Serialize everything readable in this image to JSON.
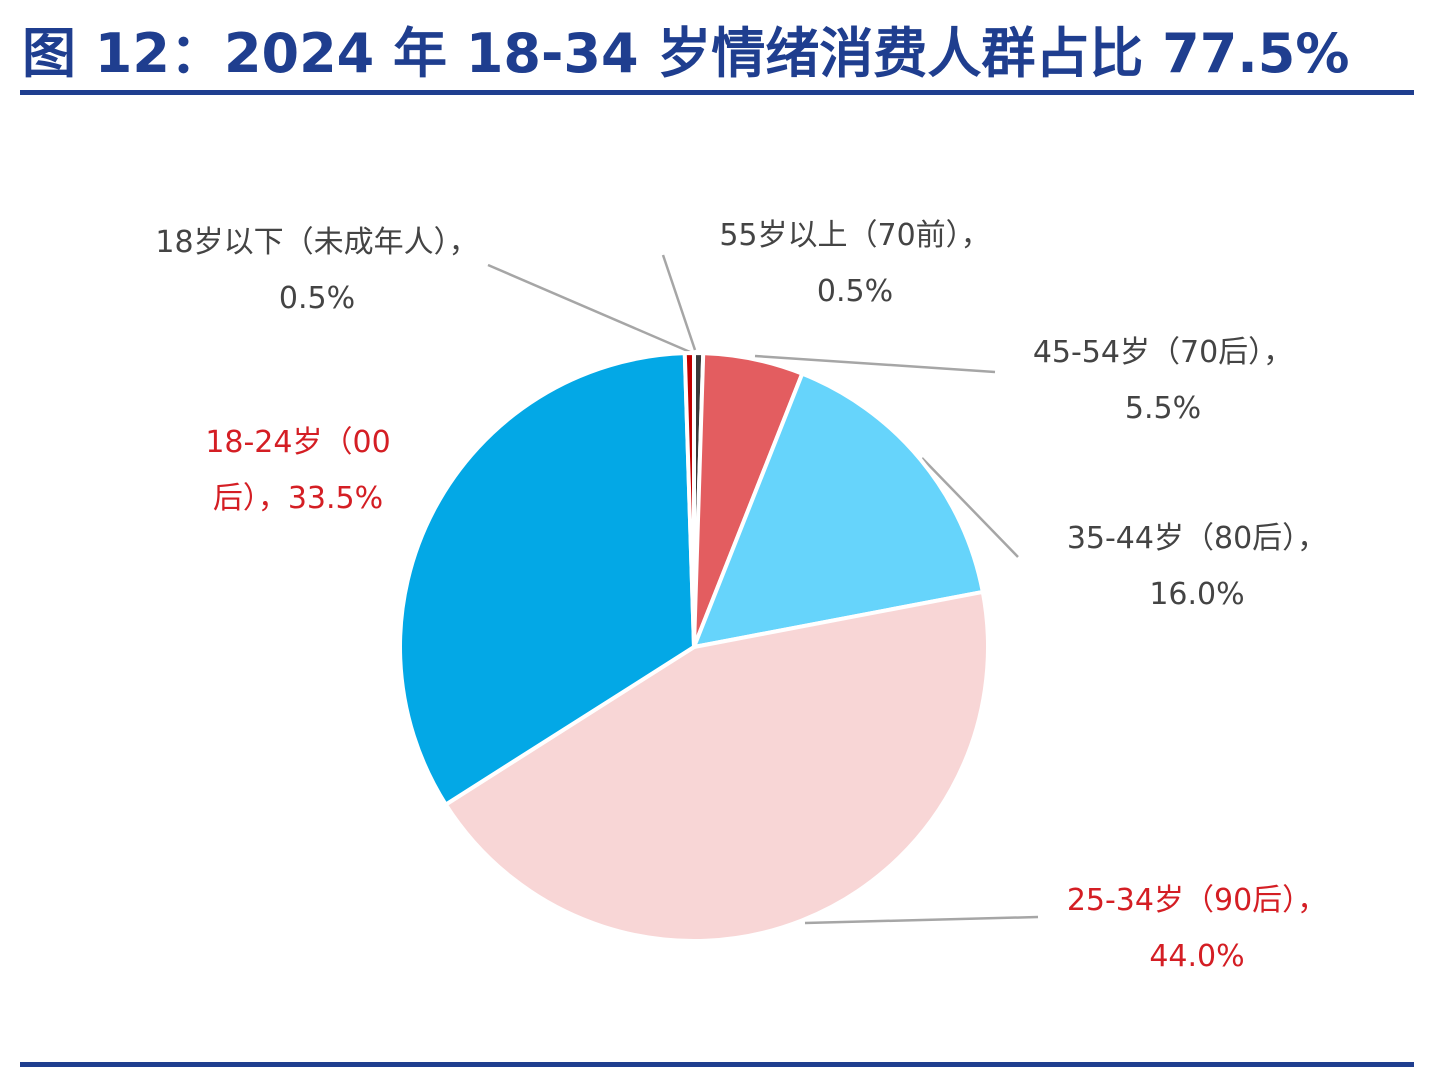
{
  "figure": {
    "title": "图 12：2024 年 18-34 岁情绪消费人群占比 77.5%",
    "accent_color": "#1f3e8f"
  },
  "chart_data": {
    "type": "pie",
    "title": "",
    "categories": [
      "55岁以上（70前）",
      "45-54岁（70后）",
      "35-44岁（80后）",
      "25-34岁（90后）",
      "18-24岁（00后）",
      "18岁以下（未成年人）"
    ],
    "values": [
      0.5,
      5.5,
      16.0,
      44.0,
      33.5,
      0.5
    ],
    "value_labels": [
      "0.5%",
      "5.5%",
      "16.0%",
      "44.0%",
      "33.5%",
      "0.5%"
    ],
    "colors": [
      "#3a3a3a",
      "#e35d60",
      "#66d4fb",
      "#f8d6d6",
      "#03a8e6",
      "#c00000"
    ],
    "label_colors": [
      "#444444",
      "#444444",
      "#444444",
      "#d41e24",
      "#d41e24",
      "#444444"
    ],
    "label_lines": [
      [
        "55岁以上（70前），",
        "0.5%"
      ],
      [
        "45-54岁（70后），",
        "5.5%"
      ],
      [
        "35-44岁（80后），",
        "16.0%"
      ],
      [
        "25-34岁（90后），",
        "44.0%"
      ],
      [
        "18-24岁（00",
        "后），33.5%"
      ],
      [
        "18岁以下（未成年人），",
        "0.5%"
      ]
    ],
    "start_angle_deg": 0,
    "direction": "clockwise",
    "legend": "none"
  }
}
